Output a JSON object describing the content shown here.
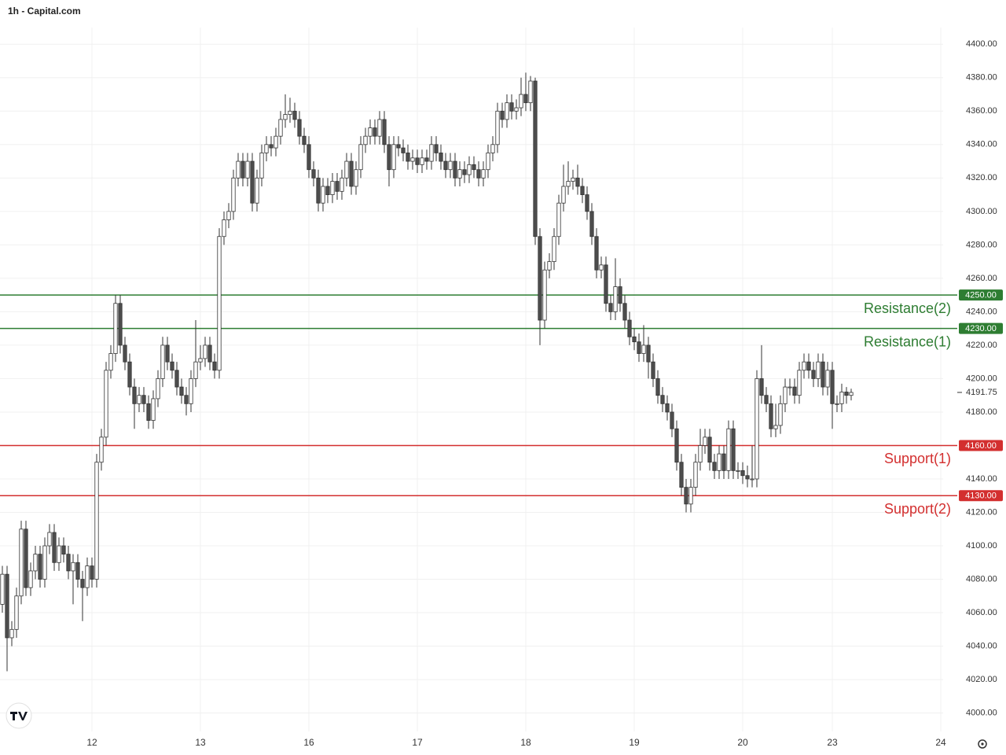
{
  "chart_data": {
    "type": "candlestick",
    "title": "1h - Capital.com",
    "categories": [
      null,
      null,
      null,
      null,
      null,
      null,
      null,
      null,
      null,
      null,
      null,
      null,
      null,
      null,
      null,
      null,
      null,
      null,
      null,
      "12",
      null,
      null,
      null,
      null,
      null,
      null,
      null,
      null,
      null,
      null,
      null,
      null,
      null,
      null,
      null,
      null,
      null,
      null,
      null,
      null,
      null,
      null,
      "13",
      null,
      null,
      null,
      null,
      null,
      null,
      null,
      null,
      null,
      null,
      null,
      null,
      null,
      null,
      null,
      null,
      null,
      null,
      null,
      null,
      null,
      null,
      "16",
      null,
      null,
      null,
      null,
      null,
      null,
      null,
      null,
      null,
      null,
      null,
      null,
      null,
      null,
      null,
      null,
      null,
      null,
      null,
      null,
      null,
      null,
      "17",
      null,
      null,
      null,
      null,
      null,
      null,
      null,
      null,
      null,
      null,
      null,
      null,
      null,
      null,
      null,
      null,
      null,
      null,
      null,
      null,
      null,
      null,
      "18",
      null,
      null,
      null,
      null,
      null,
      null,
      null,
      null,
      null,
      null,
      null,
      null,
      null,
      null,
      null,
      null,
      null,
      null,
      null,
      null,
      null,
      null,
      "19",
      null,
      null,
      null,
      null,
      null,
      null,
      null,
      null,
      null,
      null,
      null,
      null,
      null,
      null,
      null,
      null,
      null,
      null,
      null,
      null,
      null,
      null,
      "20",
      null,
      null,
      null,
      null,
      null,
      null,
      null,
      null,
      null,
      null,
      null,
      null,
      null,
      null,
      null,
      null,
      null,
      null,
      "23",
      null,
      null,
      null,
      null,
      null,
      null,
      null,
      null,
      null,
      null,
      null,
      null,
      null,
      null,
      null,
      null,
      null,
      null,
      null,
      null,
      null,
      null,
      "24"
    ],
    "open": [
      4065,
      4083,
      4045,
      4050,
      4070,
      4110,
      4075,
      4085,
      4095,
      4080,
      4100,
      4108,
      4090,
      4100,
      4095,
      4085,
      4090,
      4080,
      4075,
      4088,
      4080,
      4150,
      4165,
      4205,
      4215,
      4245,
      4220,
      4210,
      4195,
      4185,
      4190,
      4185,
      4175,
      4188,
      4200,
      4220,
      4210,
      4205,
      4195,
      4190,
      4185,
      4200,
      4210,
      4212,
      4220,
      4210,
      4205,
      4285,
      4295,
      4300,
      4320,
      4330,
      4320,
      4330,
      4305,
      4320,
      4335,
      4340,
      4338,
      4345,
      4355,
      4358,
      4360,
      4355,
      4345,
      4340,
      4325,
      4320,
      4305,
      4315,
      4310,
      4318,
      4312,
      4320,
      4330,
      4315,
      4325,
      4340,
      4345,
      4350,
      4345,
      4355,
      4340,
      4325,
      4340,
      4338,
      4335,
      4330,
      4332,
      4328,
      4332,
      4330,
      4340,
      4335,
      4330,
      4325,
      4330,
      4320,
      4325,
      4322,
      4328,
      4325,
      4320,
      4325,
      4335,
      4340,
      4360,
      4355,
      4365,
      4360,
      4362,
      4370,
      4365,
      4378,
      4285,
      4235,
      4265,
      4270,
      4285,
      4305,
      4315,
      4318,
      4320,
      4315,
      4310,
      4300,
      4285,
      4265,
      4268,
      4245,
      4240,
      4255,
      4245,
      4235,
      4225,
      4222,
      4215,
      4220,
      4210,
      4200,
      4190,
      4185,
      4180,
      4170,
      4150,
      4135,
      4125,
      4135,
      4150,
      4160,
      4165,
      4150,
      4145,
      4155,
      4145,
      4170,
      4145,
      4145,
      4142,
      4140,
      4140,
      4200,
      4190,
      4185,
      4170,
      4172,
      4185,
      4195,
      4195,
      4190,
      4205,
      4210,
      4205,
      4200,
      4210,
      4195,
      4205,
      4185,
      4185,
      4192,
      4190,
      null,
      null,
      null,
      null,
      null,
      null,
      null,
      null,
      null,
      null,
      null,
      null,
      null,
      null,
      null,
      null,
      null,
      null,
      null
    ],
    "high": [
      4088,
      4088,
      4055,
      4075,
      4115,
      4115,
      4090,
      4100,
      4100,
      4105,
      4113,
      4113,
      4105,
      4105,
      4100,
      4095,
      4095,
      4085,
      4093,
      4093,
      4155,
      4170,
      4210,
      4220,
      4250,
      4250,
      4225,
      4215,
      4200,
      4195,
      4195,
      4190,
      4193,
      4205,
      4225,
      4225,
      4215,
      4210,
      4200,
      4195,
      4205,
      4235,
      4220,
      4225,
      4225,
      4215,
      4290,
      4300,
      4305,
      4325,
      4335,
      4335,
      4335,
      4335,
      4325,
      4340,
      4345,
      4345,
      4350,
      4360,
      4370,
      4368,
      4365,
      4360,
      4350,
      4345,
      4330,
      4325,
      4320,
      4320,
      4323,
      4323,
      4325,
      4335,
      4335,
      4330,
      4345,
      4350,
      4355,
      4355,
      4360,
      4360,
      4345,
      4345,
      4345,
      4343,
      4340,
      4337,
      4337,
      4337,
      4337,
      4345,
      4345,
      4340,
      4335,
      4335,
      4335,
      4330,
      4330,
      4333,
      4333,
      4330,
      4330,
      4340,
      4345,
      4365,
      4365,
      4370,
      4370,
      4367,
      4380,
      4383,
      4381,
      4380,
      4290,
      4270,
      4275,
      4290,
      4310,
      4328,
      4330,
      4325,
      4328,
      4320,
      4315,
      4305,
      4290,
      4273,
      4273,
      4250,
      4272,
      4260,
      4250,
      4240,
      4230,
      4227,
      4232,
      4225,
      4215,
      4205,
      4195,
      4190,
      4185,
      4175,
      4155,
      4140,
      4140,
      4155,
      4170,
      4170,
      4170,
      4155,
      4160,
      4160,
      4175,
      4175,
      4150,
      4150,
      4148,
      4160,
      4205,
      4220,
      4195,
      4190,
      4185,
      4190,
      4200,
      4200,
      4200,
      4210,
      4215,
      4215,
      4210,
      4215,
      4215,
      4210,
      4210,
      4190,
      4197,
      4195,
      4194,
      null,
      null,
      null,
      null,
      null,
      null,
      null,
      null,
      null,
      null,
      null,
      null,
      null,
      null,
      null,
      null,
      null,
      null,
      null
    ],
    "low": [
      4060,
      4025,
      4040,
      4045,
      4065,
      4070,
      4070,
      4080,
      4075,
      4075,
      4095,
      4085,
      4085,
      4090,
      4080,
      4065,
      4075,
      4055,
      4070,
      4075,
      4075,
      4145,
      4160,
      4200,
      4210,
      4215,
      4205,
      4190,
      4170,
      4180,
      4180,
      4170,
      4170,
      4183,
      4195,
      4205,
      4200,
      4190,
      4185,
      4178,
      4180,
      4195,
      4205,
      4207,
      4205,
      4200,
      4200,
      4280,
      4290,
      4295,
      4315,
      4315,
      4315,
      4300,
      4300,
      4315,
      4330,
      4333,
      4333,
      4340,
      4350,
      4353,
      4350,
      4340,
      4335,
      4320,
      4315,
      4300,
      4300,
      4305,
      4305,
      4307,
      4307,
      4315,
      4310,
      4310,
      4320,
      4335,
      4340,
      4340,
      4340,
      4335,
      4315,
      4320,
      4333,
      4330,
      4325,
      4325,
      4323,
      4323,
      4325,
      4325,
      4330,
      4325,
      4320,
      4320,
      4315,
      4315,
      4317,
      4317,
      4320,
      4315,
      4315,
      4320,
      4330,
      4335,
      4350,
      4350,
      4355,
      4355,
      4357,
      4360,
      4360,
      4280,
      4220,
      4230,
      4260,
      4265,
      4280,
      4300,
      4310,
      4313,
      4310,
      4305,
      4295,
      4280,
      4260,
      4260,
      4240,
      4235,
      4235,
      4240,
      4230,
      4220,
      4217,
      4210,
      4210,
      4200,
      4195,
      4185,
      4180,
      4175,
      4165,
      4145,
      4130,
      4120,
      4120,
      4130,
      4145,
      4155,
      4145,
      4140,
      4140,
      4140,
      4140,
      4140,
      4140,
      4137,
      4135,
      4135,
      4135,
      4185,
      4180,
      4165,
      4165,
      4167,
      4180,
      4190,
      4185,
      4185,
      4200,
      4200,
      4195,
      4195,
      4190,
      4190,
      4170,
      4180,
      4180,
      4185,
      4187,
      null,
      null,
      null,
      null,
      null,
      null,
      null,
      null,
      null,
      null,
      null,
      null,
      null,
      null,
      null,
      null,
      null,
      null,
      null
    ],
    "close": [
      4083,
      4045,
      4050,
      4070,
      4110,
      4075,
      4085,
      4095,
      4080,
      4100,
      4108,
      4090,
      4100,
      4095,
      4085,
      4090,
      4080,
      4075,
      4088,
      4080,
      4150,
      4165,
      4205,
      4215,
      4245,
      4220,
      4210,
      4195,
      4185,
      4190,
      4185,
      4175,
      4188,
      4200,
      4220,
      4210,
      4205,
      4195,
      4190,
      4185,
      4200,
      4210,
      4212,
      4220,
      4210,
      4205,
      4285,
      4295,
      4300,
      4320,
      4330,
      4320,
      4330,
      4305,
      4320,
      4335,
      4340,
      4338,
      4345,
      4355,
      4358,
      4360,
      4355,
      4345,
      4340,
      4325,
      4320,
      4305,
      4315,
      4310,
      4318,
      4312,
      4320,
      4330,
      4315,
      4325,
      4340,
      4345,
      4350,
      4345,
      4355,
      4340,
      4325,
      4340,
      4338,
      4335,
      4330,
      4332,
      4328,
      4332,
      4330,
      4340,
      4335,
      4330,
      4325,
      4330,
      4320,
      4325,
      4322,
      4328,
      4325,
      4320,
      4325,
      4335,
      4340,
      4360,
      4355,
      4365,
      4360,
      4362,
      4370,
      4365,
      4378,
      4285,
      4235,
      4265,
      4270,
      4285,
      4305,
      4315,
      4318,
      4320,
      4315,
      4310,
      4300,
      4285,
      4265,
      4268,
      4245,
      4240,
      4255,
      4245,
      4235,
      4225,
      4222,
      4215,
      4220,
      4210,
      4200,
      4190,
      4185,
      4180,
      4170,
      4150,
      4135,
      4125,
      4135,
      4150,
      4160,
      4165,
      4150,
      4145,
      4155,
      4145,
      4170,
      4145,
      4145,
      4142,
      4140,
      4140,
      4200,
      4190,
      4185,
      4170,
      4172,
      4185,
      4195,
      4195,
      4190,
      4205,
      4210,
      4205,
      4200,
      4210,
      4195,
      4205,
      4185,
      4185,
      4192,
      4190,
      4191.75,
      null,
      null,
      null,
      null,
      null,
      null,
      null,
      null,
      null,
      null,
      null,
      null,
      null,
      null,
      null,
      null,
      null,
      null,
      null
    ],
    "up_color": "#ffffff",
    "down_color": "#4d4d4d",
    "edge_color": "#333333",
    "ylim": [
      3989,
      4410
    ],
    "yticks": [
      {
        "value": 4000,
        "label": "4000.00"
      },
      {
        "value": 4020,
        "label": "4020.00"
      },
      {
        "value": 4040,
        "label": "4040.00"
      },
      {
        "value": 4060,
        "label": "4060.00"
      },
      {
        "value": 4080,
        "label": "4080.00"
      },
      {
        "value": 4100,
        "label": "4100.00"
      },
      {
        "value": 4120,
        "label": "4120.00"
      },
      {
        "value": 4140,
        "label": "4140.00"
      },
      {
        "value": 4160,
        "label": "4160.00"
      },
      {
        "value": 4180,
        "label": "4180.00"
      },
      {
        "value": 4200,
        "label": "4200.00"
      },
      {
        "value": 4220,
        "label": "4220.00"
      },
      {
        "value": 4240,
        "label": "4240.00"
      },
      {
        "value": 4260,
        "label": "4260.00"
      },
      {
        "value": 4280,
        "label": "4280.00"
      },
      {
        "value": 4300,
        "label": "4300.00"
      },
      {
        "value": 4320,
        "label": "4320.00"
      },
      {
        "value": 4340,
        "label": "4340.00"
      },
      {
        "value": 4360,
        "label": "4360.00"
      },
      {
        "value": 4380,
        "label": "4380.00"
      },
      {
        "value": 4400,
        "label": "4400.00"
      }
    ],
    "grid": true,
    "levels": [
      {
        "name": "Resistance(2)",
        "value": 4250,
        "value_label": "4250.00",
        "color": "#2e7d32"
      },
      {
        "name": "Resistance(1)",
        "value": 4230,
        "value_label": "4230.00",
        "color": "#2e7d32"
      },
      {
        "name": "Support(1)",
        "value": 4160,
        "value_label": "4160.00",
        "color": "#d32f2f"
      },
      {
        "name": "Support(2)",
        "value": 4130,
        "value_label": "4130.00",
        "color": "#d32f2f"
      }
    ],
    "last_price": 4191.75
  }
}
